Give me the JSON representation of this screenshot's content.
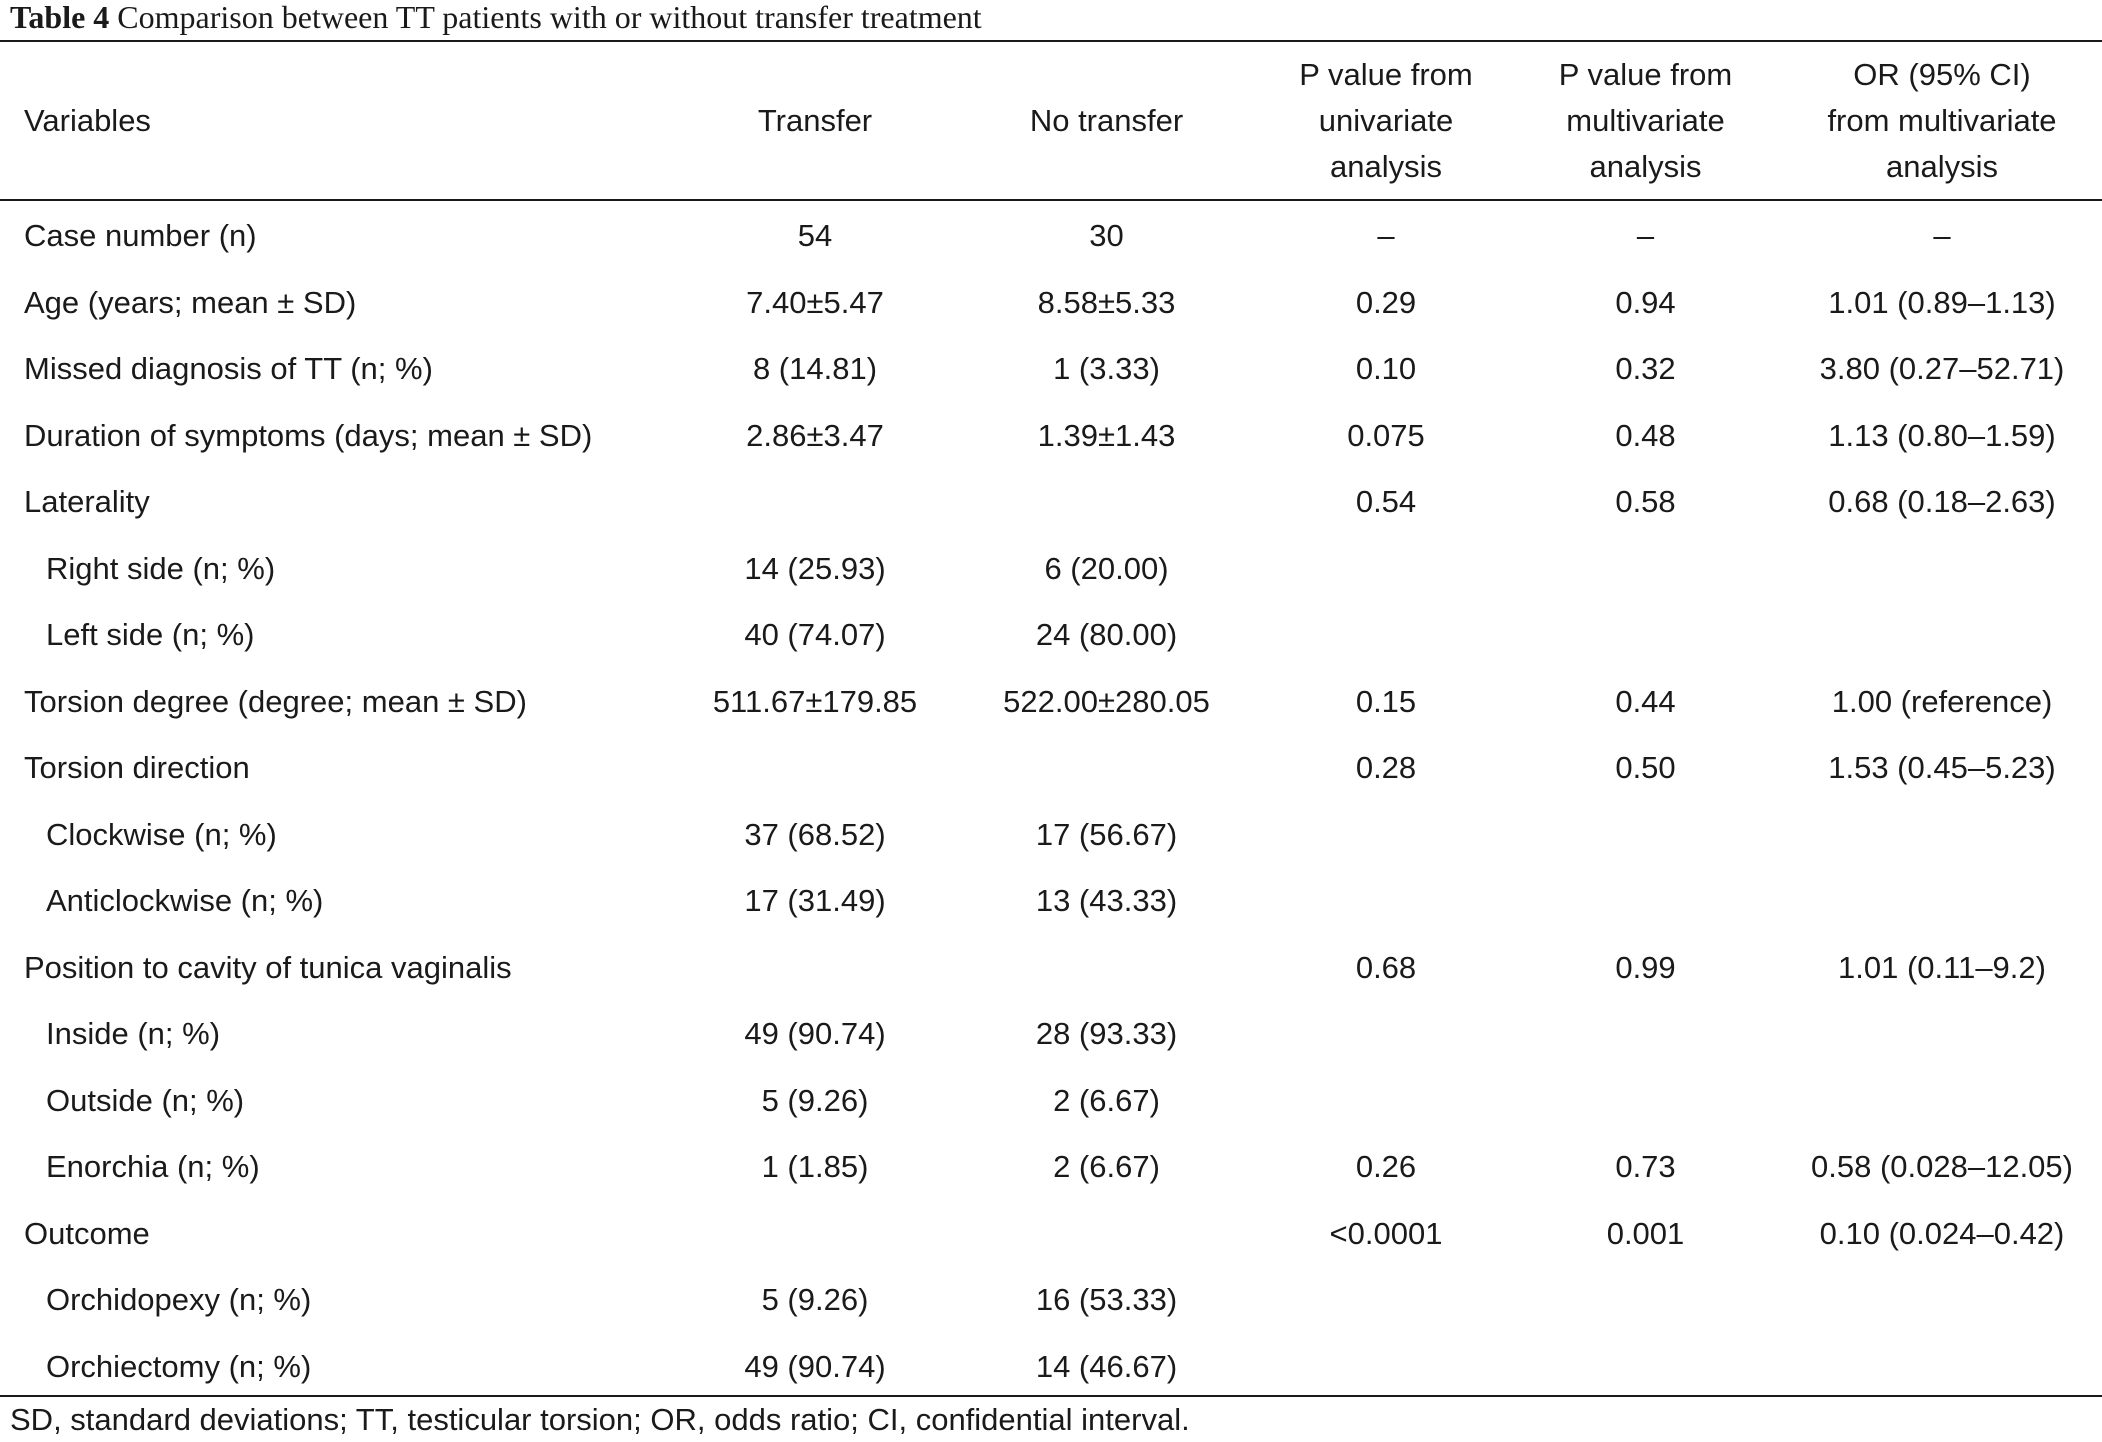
{
  "caption": {
    "label": "Table 4",
    "text": " Comparison between TT patients with or without transfer treatment"
  },
  "headers": {
    "variables": "Variables",
    "transfer": "Transfer",
    "no_transfer": "No transfer",
    "p_uni": [
      "P value from",
      "univariate",
      "analysis"
    ],
    "p_multi": [
      "P value from",
      "multivariate",
      "analysis"
    ],
    "or_ci": [
      "OR (95% CI)",
      "from multivariate",
      "analysis"
    ]
  },
  "rows": [
    {
      "var": "Case number (n)",
      "transfer": "54",
      "no_transfer": "30",
      "p_uni": "–",
      "p_multi": "–",
      "or_ci": "–"
    },
    {
      "var": "Age (years; mean ± SD)",
      "transfer": "7.40±5.47",
      "no_transfer": "8.58±5.33",
      "p_uni": "0.29",
      "p_multi": "0.94",
      "or_ci": "1.01 (0.89–1.13)"
    },
    {
      "var": "Missed diagnosis of TT (n; %)",
      "transfer": "8 (14.81)",
      "no_transfer": "1 (3.33)",
      "p_uni": "0.10",
      "p_multi": "0.32",
      "or_ci": "3.80 (0.27–52.71)"
    },
    {
      "var": "Duration of symptoms (days; mean ± SD)",
      "transfer": "2.86±3.47",
      "no_transfer": "1.39±1.43",
      "p_uni": "0.075",
      "p_multi": "0.48",
      "or_ci": "1.13 (0.80–1.59)"
    },
    {
      "var": "Laterality",
      "transfer": "",
      "no_transfer": "",
      "p_uni": "0.54",
      "p_multi": "0.58",
      "or_ci": "0.68 (0.18–2.63)"
    },
    {
      "var": "Right side (n; %)",
      "transfer": "14 (25.93)",
      "no_transfer": "6 (20.00)",
      "p_uni": "",
      "p_multi": "",
      "or_ci": ""
    },
    {
      "var": "Left side (n; %)",
      "transfer": "40 (74.07)",
      "no_transfer": "24 (80.00)",
      "p_uni": "",
      "p_multi": "",
      "or_ci": ""
    },
    {
      "var": "Torsion degree (degree; mean ± SD)",
      "transfer": "511.67±179.85",
      "no_transfer": "522.00±280.05",
      "p_uni": "0.15",
      "p_multi": "0.44",
      "or_ci": "1.00 (reference)"
    },
    {
      "var": "Torsion direction",
      "transfer": "",
      "no_transfer": "",
      "p_uni": "0.28",
      "p_multi": "0.50",
      "or_ci": "1.53 (0.45–5.23)"
    },
    {
      "var": "Clockwise (n; %)",
      "transfer": "37 (68.52)",
      "no_transfer": "17 (56.67)",
      "p_uni": "",
      "p_multi": "",
      "or_ci": ""
    },
    {
      "var": "Anticlockwise (n; %)",
      "transfer": "17 (31.49)",
      "no_transfer": "13 (43.33)",
      "p_uni": "",
      "p_multi": "",
      "or_ci": ""
    },
    {
      "var": "Position to cavity of tunica vaginalis",
      "transfer": "",
      "no_transfer": "",
      "p_uni": "0.68",
      "p_multi": "0.99",
      "or_ci": "1.01 (0.11–9.2)"
    },
    {
      "var": "Inside (n; %)",
      "transfer": "49 (90.74)",
      "no_transfer": "28 (93.33)",
      "p_uni": "",
      "p_multi": "",
      "or_ci": ""
    },
    {
      "var": "Outside (n; %)",
      "transfer": "5 (9.26)",
      "no_transfer": "2 (6.67)",
      "p_uni": "",
      "p_multi": "",
      "or_ci": ""
    },
    {
      "var": "Enorchia (n; %)",
      "transfer": "1 (1.85)",
      "no_transfer": "2 (6.67)",
      "p_uni": "0.26",
      "p_multi": "0.73",
      "or_ci": "0.58 (0.028–12.05)"
    },
    {
      "var": "Outcome",
      "transfer": "",
      "no_transfer": "",
      "p_uni": "<0.0001",
      "p_multi": "0.001",
      "or_ci": "0.10 (0.024–0.42)"
    },
    {
      "var": "Orchidopexy (n; %)",
      "transfer": "5 (9.26)",
      "no_transfer": "16 (53.33)",
      "p_uni": "",
      "p_multi": "",
      "or_ci": ""
    },
    {
      "var": "Orchiectomy (n; %)",
      "transfer": "49 (90.74)",
      "no_transfer": "14 (46.67)",
      "p_uni": "",
      "p_multi": "",
      "or_ci": ""
    }
  ],
  "footnote": "SD, standard deviations; TT, testicular torsion; OR, odds ratio; CI, confidential interval."
}
